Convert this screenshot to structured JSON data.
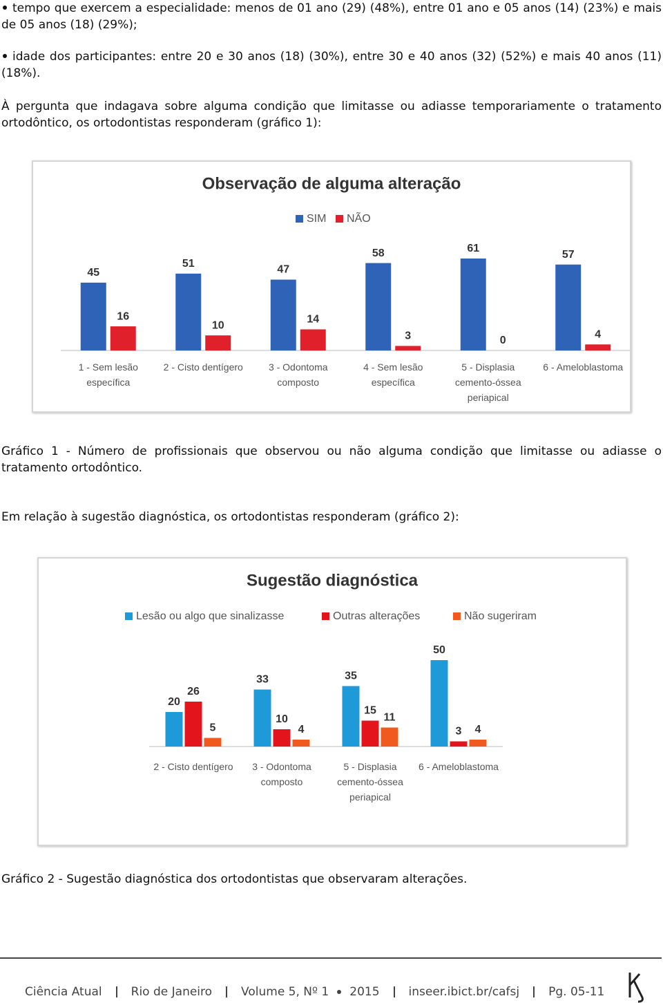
{
  "bullets": [
    "tempo que exercem a especialidade: menos de 01 ano (29) (48%), entre 01 ano e 05 anos (14) (23%) e mais de 05 anos (18) (29%);",
    "idade dos participantes: entre 20 e 30 anos (18) (30%), entre 30 e 40 anos (32) (52%) e mais 40 anos (11) (18%)."
  ],
  "paragraphs": [
    "À pergunta que indagava sobre alguma condição que limitasse ou adiasse temporariamente o tratamento ortodôntico, os ortodontistas responderam (gráfico 1):",
    "Em relação à sugestão diagnóstica, os ortodontistas responderam (gráfico 2):"
  ],
  "chart_data": [
    {
      "type": "bar",
      "title": "Observação de alguma alteração",
      "legend": "top",
      "categories": [
        "1 - Sem lesão específica",
        "2 - Cisto dentígero",
        "3 - Odontoma composto",
        "4 - Sem lesão específica",
        "5 - Displasia cemento-óssea periapical",
        "6 - Ameloblastoma"
      ],
      "series": [
        {
          "name": "SIM",
          "color": "#2e63b8",
          "values": [
            45,
            51,
            47,
            58,
            61,
            57
          ]
        },
        {
          "name": "NÃO",
          "color": "#e0202a",
          "values": [
            16,
            10,
            14,
            3,
            0,
            4
          ]
        }
      ]
    },
    {
      "type": "bar",
      "title": "Sugestão diagnóstica",
      "legend": "top",
      "categories": [
        "2 - Cisto dentígero",
        "3 - Odontoma composto",
        "5 - Displasia cemento-óssea periapical",
        "6 - Ameloblastoma"
      ],
      "series": [
        {
          "name": "Lesão ou algo que sinalizasse",
          "color": "#1e9ad8",
          "values": [
            20,
            33,
            35,
            50
          ]
        },
        {
          "name": "Outras alterações",
          "color": "#e4141c",
          "values": [
            26,
            10,
            15,
            3
          ]
        },
        {
          "name": "Não sugeriram",
          "color": "#f05a1e",
          "values": [
            5,
            4,
            11,
            4
          ]
        }
      ]
    }
  ],
  "captions": [
    "Gráfico 1 - Número de profissionais que observou ou não alguma condição que limitasse ou adiasse o tratamento ortodôntico.",
    "Gráfico 2 - Sugestão diagnóstica dos ortodontistas que observaram alterações."
  ],
  "footer": [
    "Ciência Atual",
    "Rio de Janeiro",
    "Volume 5, Nº 1",
    "2015",
    "inseer.ibict.br/cafsj",
    "Pg. 05-11"
  ]
}
